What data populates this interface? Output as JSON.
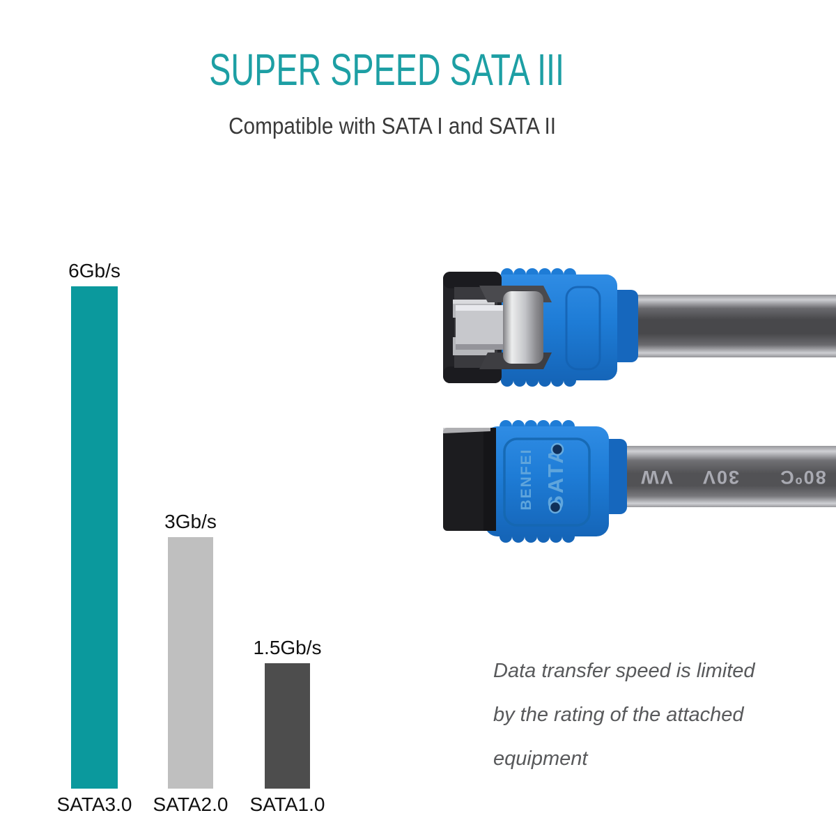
{
  "header": {
    "title": "SUPER SPEED SATA III",
    "subtitle": "Compatible with SATA I and SATA II"
  },
  "colors": {
    "title_teal": "#1d9fa4",
    "subtitle_gray": "#3a3a3a",
    "note_gray": "#58595b",
    "connector_blue": "#1e7cd6",
    "connector_blue_dark": "#1667bd",
    "cable_dark_gray": "#48484b",
    "cable_print_gray": "#a9aab2"
  },
  "chart_data": {
    "type": "bar",
    "categories": [
      "SATA3.0",
      "SATA2.0",
      "SATA1.0"
    ],
    "values": [
      6,
      3,
      1.5
    ],
    "unit": "Gb/s",
    "value_labels": [
      "6Gb/s",
      "3Gb/s",
      "1.5Gb/s"
    ],
    "bar_colors": [
      "#0b999d",
      "#bfbfbf",
      "#4d4d4d"
    ],
    "title": "",
    "xlabel": "",
    "ylabel": "",
    "ylim": [
      0,
      6
    ],
    "grid": false,
    "legend": "none"
  },
  "note": {
    "line1": "Data transfer speed is limited",
    "line2": "by the rating of the attached",
    "line3": "equipment"
  },
  "cable": {
    "brand": "BENFEI",
    "label": "SATA",
    "print_words": [
      "VW",
      "30V",
      "80ºC"
    ]
  }
}
